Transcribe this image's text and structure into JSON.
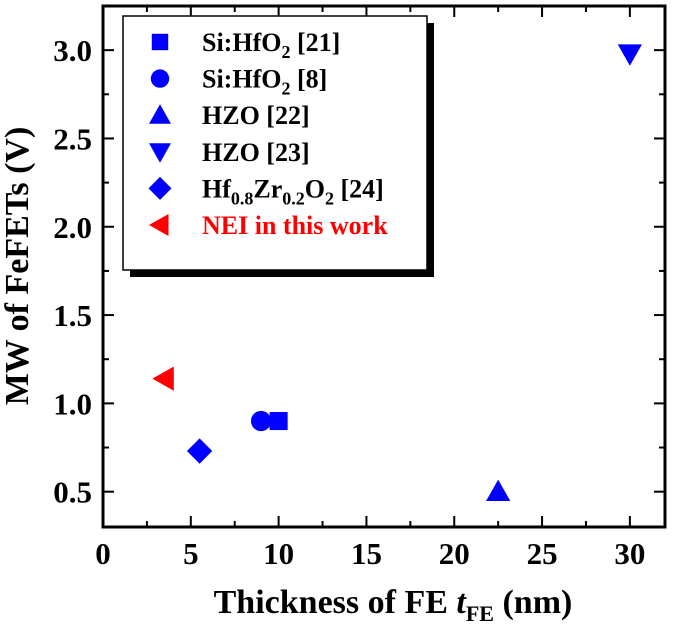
{
  "chart_data": {
    "type": "scatter",
    "xlabel": {
      "main": "Thickness of FE ",
      "var": "t",
      "sub": "FE",
      "unit": " (nm)"
    },
    "ylabel": "MW of FeFETs (V)",
    "xlim": [
      0,
      32
    ],
    "ylim": [
      0.3,
      3.25
    ],
    "x_ticks": [
      0,
      5,
      10,
      15,
      20,
      25,
      30
    ],
    "y_ticks": [
      0.5,
      1.0,
      1.5,
      2.0,
      2.5,
      3.0
    ],
    "x_tick_labels": [
      "0",
      "5",
      "10",
      "15",
      "20",
      "25",
      "30"
    ],
    "y_tick_labels": [
      "0.5",
      "1.0",
      "1.5",
      "2.0",
      "2.5",
      "3.0"
    ],
    "grid": false,
    "legend_position": "top-left",
    "series": [
      {
        "key": "s21",
        "name": [
          {
            "t": "Si:HfO"
          },
          {
            "t": "2",
            "sub": true
          },
          {
            "t": " [21]"
          }
        ],
        "marker": "square",
        "color": "#0000ff",
        "points": [
          {
            "x": 10.0,
            "y": 0.9
          }
        ]
      },
      {
        "key": "s8",
        "name": [
          {
            "t": "Si:HfO"
          },
          {
            "t": "2",
            "sub": true
          },
          {
            "t": " [8]"
          }
        ],
        "marker": "circle",
        "color": "#0000ff",
        "points": [
          {
            "x": 9.0,
            "y": 0.9
          }
        ]
      },
      {
        "key": "h22",
        "name": [
          {
            "t": "HZO [22]"
          }
        ],
        "marker": "triangle-up",
        "color": "#0000ff",
        "points": [
          {
            "x": 22.5,
            "y": 0.5
          }
        ]
      },
      {
        "key": "h23",
        "name": [
          {
            "t": "HZO [23]"
          }
        ],
        "marker": "triangle-down",
        "color": "#0000ff",
        "points": [
          {
            "x": 30.0,
            "y": 2.98
          }
        ]
      },
      {
        "key": "hz24",
        "name": [
          {
            "t": "Hf"
          },
          {
            "t": "0.8",
            "sub": true
          },
          {
            "t": "Zr"
          },
          {
            "t": "0.2",
            "sub": true
          },
          {
            "t": "O"
          },
          {
            "t": "2",
            "sub": true
          },
          {
            "t": " [24]"
          }
        ],
        "marker": "diamond",
        "color": "#0000ff",
        "points": [
          {
            "x": 5.5,
            "y": 0.73
          }
        ]
      },
      {
        "key": "nei",
        "name": [
          {
            "t": "NEI in this work"
          }
        ],
        "marker": "triangle-left",
        "color": "#ff0000",
        "points": [
          {
            "x": 3.5,
            "y": 1.14
          }
        ]
      }
    ]
  }
}
